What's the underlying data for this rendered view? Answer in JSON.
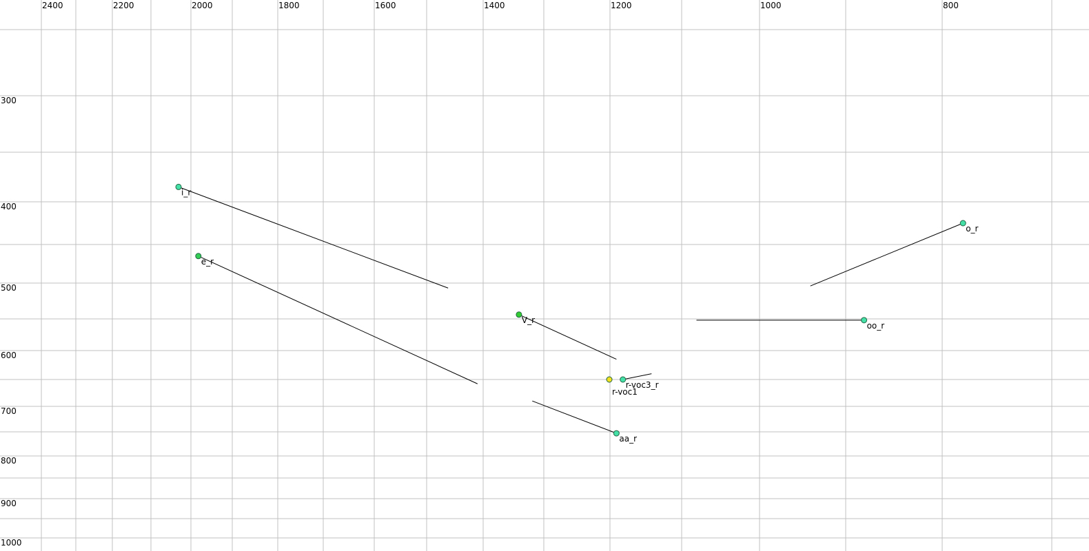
{
  "chart_data": {
    "type": "scatter",
    "title": "",
    "xlabel": "",
    "ylabel": "",
    "x_axis": {
      "reversed": true,
      "position": "top",
      "gridlines": [
        2400,
        2300,
        2200,
        2100,
        2000,
        1900,
        1800,
        1700,
        1600,
        1500,
        1400,
        1300,
        1200,
        1100,
        1000,
        900,
        800,
        700
      ],
      "tick_labels": [
        "2400",
        "2200",
        "2000",
        "1800",
        "1600",
        "1400",
        "1200",
        "1000",
        "800"
      ]
    },
    "y_axis": {
      "reversed": false,
      "position": "left",
      "gridlines": [
        250,
        300,
        350,
        400,
        450,
        500,
        550,
        600,
        650,
        700,
        750,
        800,
        850,
        900,
        950,
        1000
      ],
      "tick_labels": [
        "300",
        "400",
        "500",
        "600",
        "700",
        "800",
        "900",
        "1000"
      ]
    },
    "grid": true,
    "grid_color": "#c0c0c0",
    "points": [
      {
        "label": "i_r",
        "x": 2031,
        "y": 385,
        "color": "#44e0a8",
        "trail_to": [
          1462,
          507
        ]
      },
      {
        "label": "e_r",
        "x": 1982,
        "y": 465,
        "color": "#33cc55",
        "trail_to": [
          1410,
          658
        ]
      },
      {
        "label": "V_r",
        "x": 1341,
        "y": 544,
        "color": "#33cc33",
        "trail_to": [
          1191,
          615
        ]
      },
      {
        "label": "r-voc3_r",
        "x": 1182,
        "y": 650,
        "color": "#44e0a8",
        "trail_to": [
          1142,
          640
        ]
      },
      {
        "label": "r-voc1",
        "x": 1201,
        "y": 650,
        "color": "#f0e020",
        "trail_to": null
      },
      {
        "label": "aa_r",
        "x": 1191,
        "y": 753,
        "color": "#44e0a8",
        "trail_to": [
          1319,
          690
        ]
      },
      {
        "label": "o_r",
        "x": 781,
        "y": 425,
        "color": "#44e0a8",
        "trail_to": [
          941,
          504
        ]
      },
      {
        "label": "oo_r",
        "x": 881,
        "y": 552,
        "color": "#44e0a8",
        "trail_to": [
          1081,
          552
        ]
      }
    ]
  }
}
